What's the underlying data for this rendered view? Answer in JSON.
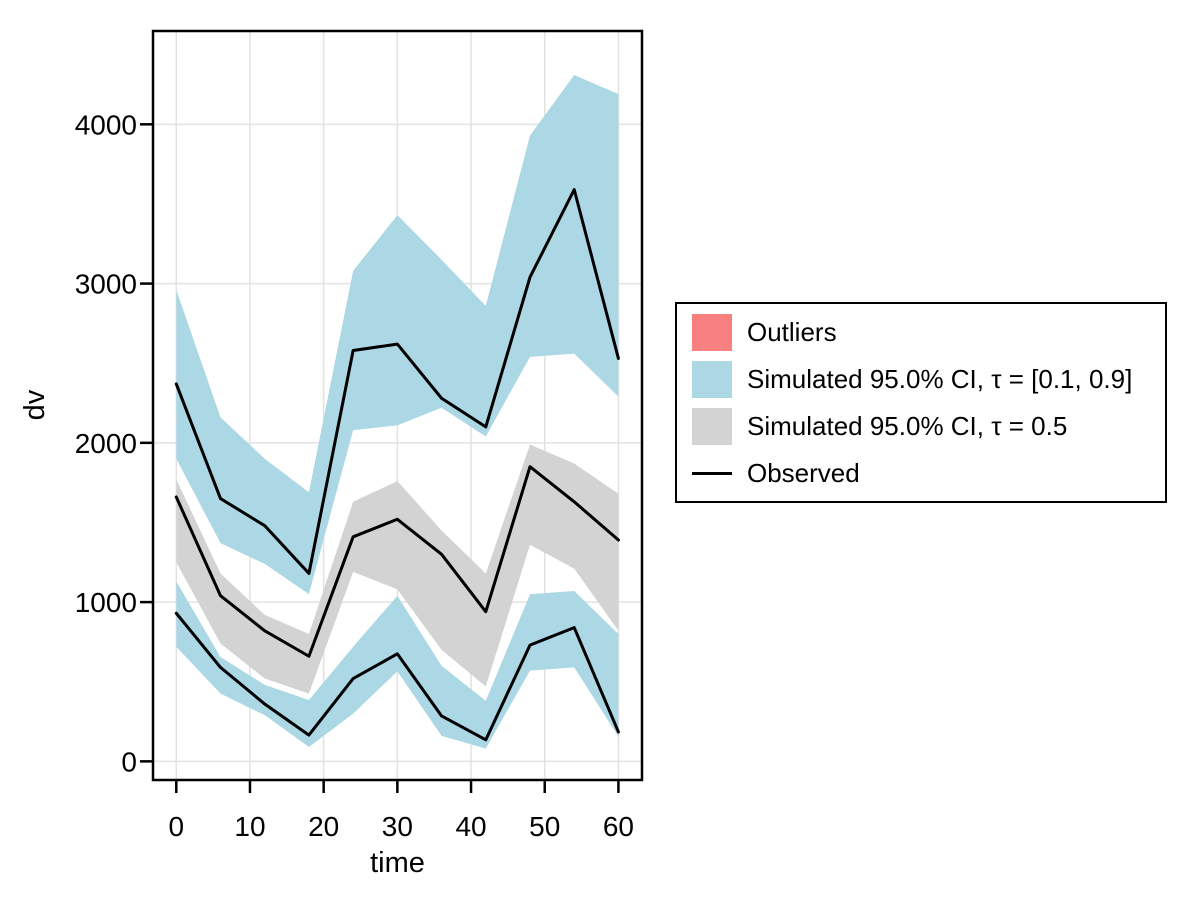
{
  "figure": {
    "background": "#ffffff",
    "legend": {
      "items": [
        {
          "label": "Outliers",
          "type": "box",
          "color": "#F98080"
        },
        {
          "label": "Simulated 95.0% CI, τ = [0.1, 0.9]",
          "type": "box",
          "color": "#ACD8E5"
        },
        {
          "label": "Simulated 95.0% CI, τ = 0.5",
          "type": "box",
          "color": "#D3D3D3"
        },
        {
          "label": "Observed",
          "type": "line",
          "color": "#000000"
        }
      ]
    }
  },
  "chart_data": {
    "type": "area",
    "title": "",
    "xlabel": "time",
    "ylabel": "dv",
    "x_ticks": [
      0,
      10,
      20,
      30,
      40,
      50,
      60
    ],
    "y_ticks": [
      0,
      1000,
      2000,
      3000,
      4000
    ],
    "xlim": [
      -3.16,
      63.2
    ],
    "ylim": [
      -117,
      4586
    ],
    "grid": true,
    "grid_color": "#E2E2E2",
    "legend_position": "right-outside",
    "x": [
      0,
      6,
      12,
      18,
      24,
      30,
      36,
      42,
      48,
      54,
      60
    ],
    "series": [
      {
        "name": "Simulated 95.0% CI, τ = [0.1, 0.9] — band around 90th percentile",
        "type": "band",
        "color": "#ACD8E5",
        "upper": [
          2960,
          2160,
          1900,
          1690,
          3080,
          3430,
          3150,
          2860,
          3930,
          4310,
          4190
        ],
        "lower": [
          1900,
          1370,
          1240,
          1050,
          2080,
          2110,
          2220,
          2040,
          2540,
          2560,
          2290
        ]
      },
      {
        "name": "Simulated 95.0% CI, τ = 0.5 — band around median",
        "type": "band",
        "color": "#D3D3D3",
        "upper": [
          1770,
          1180,
          920,
          800,
          1630,
          1760,
          1450,
          1180,
          1990,
          1870,
          1680
        ],
        "lower": [
          1250,
          740,
          520,
          425,
          1190,
          1080,
          700,
          470,
          1360,
          1210,
          820
        ]
      },
      {
        "name": "Simulated 95.0% CI, τ = [0.1, 0.9] — band around 10th percentile",
        "type": "band",
        "color": "#ACD8E5",
        "upper": [
          1130,
          655,
          480,
          385,
          720,
          1040,
          600,
          380,
          1050,
          1070,
          800
        ],
        "lower": [
          720,
          425,
          290,
          90,
          300,
          565,
          160,
          80,
          570,
          590,
          155
        ]
      },
      {
        "name": "Observed 90th percentile",
        "type": "line",
        "color": "#000000",
        "values": [
          2370,
          1650,
          1480,
          1180,
          2580,
          2620,
          2280,
          2100,
          3040,
          3590,
          2530
        ]
      },
      {
        "name": "Observed median",
        "type": "line",
        "color": "#000000",
        "values": [
          1660,
          1040,
          820,
          660,
          1410,
          1520,
          1300,
          940,
          1850,
          1630,
          1390
        ]
      },
      {
        "name": "Observed 10th percentile",
        "type": "line",
        "color": "#000000",
        "values": [
          930,
          590,
          360,
          165,
          520,
          675,
          285,
          135,
          730,
          840,
          185
        ]
      }
    ]
  }
}
